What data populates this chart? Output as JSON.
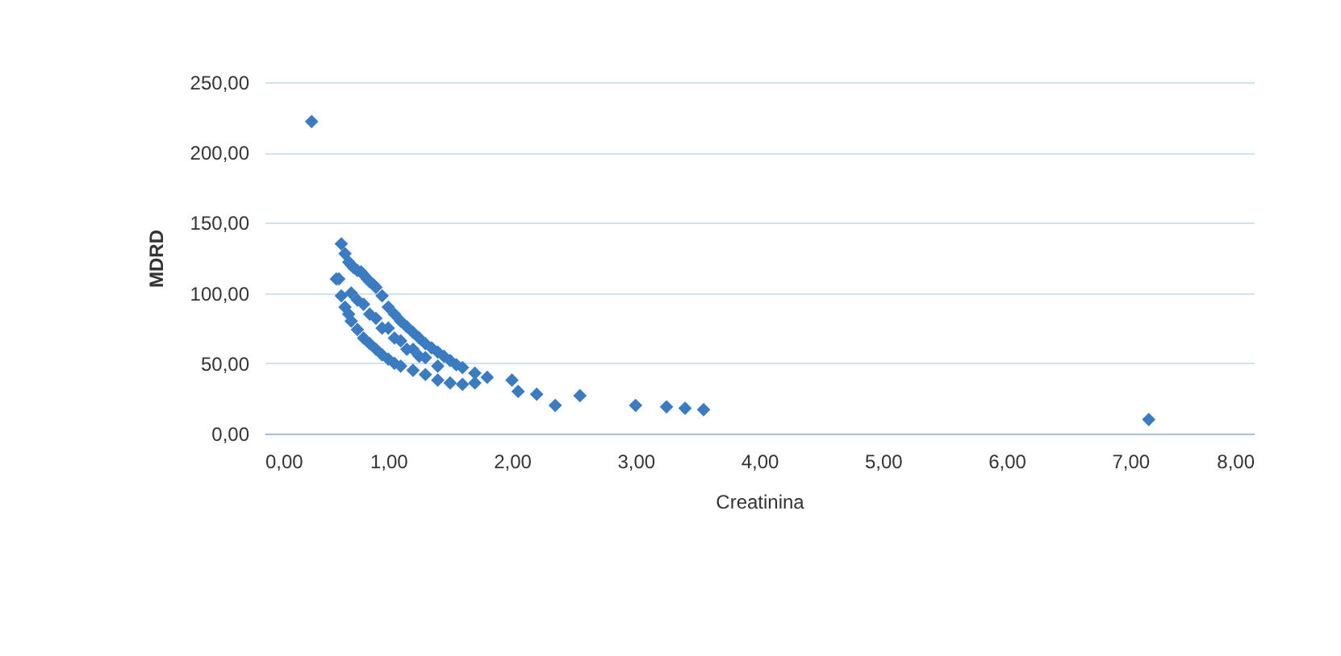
{
  "chart_data": {
    "type": "scatter",
    "xlabel": "Creatinina",
    "ylabel": "MDRD",
    "marker": "diamond",
    "grid": "y",
    "xlim": [
      0,
      8
    ],
    "xticks": [
      {
        "value": 0,
        "label": "0,00"
      },
      {
        "value": 1,
        "label": "1,00"
      },
      {
        "value": 2,
        "label": "2,00"
      },
      {
        "value": 3,
        "label": "3,00"
      },
      {
        "value": 4,
        "label": "4,00"
      },
      {
        "value": 5,
        "label": "5,00"
      },
      {
        "value": 6,
        "label": "6,00"
      },
      {
        "value": 7,
        "label": "7,00"
      },
      {
        "value": 8,
        "label": "8,00"
      }
    ],
    "ylim": [
      0,
      250
    ],
    "yticks": [
      {
        "value": 0,
        "label": "0,00"
      },
      {
        "value": 50,
        "label": "50,00"
      },
      {
        "value": 100,
        "label": "100,00"
      },
      {
        "value": 150,
        "label": "150,00"
      },
      {
        "value": 200,
        "label": "200,00"
      },
      {
        "value": 250,
        "label": "250,00"
      }
    ],
    "series": [
      {
        "color": "#3a7cc4",
        "x": [
          0.38,
          0.6,
          0.62,
          0.65,
          0.68,
          0.7,
          0.72,
          0.75,
          0.78,
          0.8,
          0.83,
          0.85,
          0.88,
          0.9,
          0.95,
          1.0,
          1.05,
          1.1,
          1.15,
          1.2,
          1.25,
          1.3,
          1.35,
          1.4,
          1.45,
          1.5,
          1.55,
          1.6,
          1.7,
          1.8,
          0.58,
          0.62,
          0.65,
          0.68,
          0.7,
          0.75,
          0.8,
          0.85,
          0.9,
          0.95,
          1.0,
          1.05,
          1.1,
          1.2,
          1.3,
          1.4,
          1.5,
          1.6,
          1.7,
          0.7,
          0.8,
          0.9,
          1.0,
          1.1,
          1.2,
          1.3,
          1.4,
          0.75,
          0.85,
          0.95,
          1.05,
          1.15,
          1.25,
          2.0,
          2.05,
          2.2,
          2.35,
          2.55,
          3.0,
          3.25,
          3.4,
          3.55,
          7.15
        ],
        "values": [
          222,
          110,
          135,
          128,
          122,
          120,
          118,
          116,
          115,
          113,
          110,
          108,
          106,
          104,
          98,
          90,
          85,
          80,
          76,
          72,
          68,
          64,
          61,
          58,
          55,
          52,
          49,
          47,
          43,
          40,
          110,
          98,
          90,
          85,
          80,
          74,
          68,
          64,
          60,
          56,
          53,
          50,
          48,
          45,
          42,
          38,
          36,
          35,
          36,
          100,
          92,
          82,
          75,
          66,
          60,
          54,
          48,
          95,
          85,
          75,
          68,
          60,
          55,
          38,
          30,
          28,
          20,
          27,
          20,
          19,
          18,
          17,
          10
        ]
      }
    ]
  }
}
